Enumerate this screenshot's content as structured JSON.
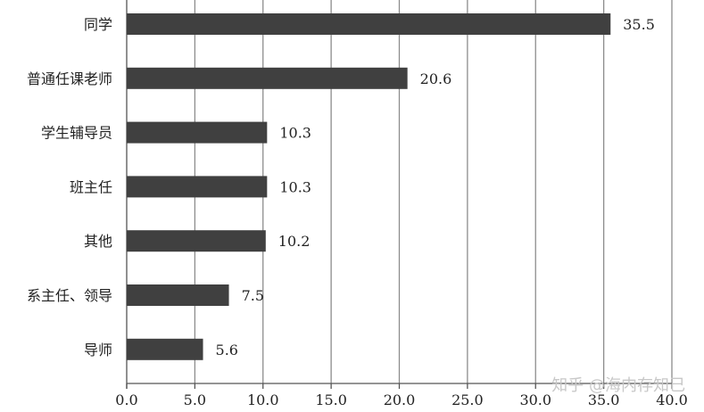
{
  "chart_data": {
    "type": "bar",
    "orientation": "horizontal",
    "categories": [
      "同学",
      "普通任课老师",
      "学生辅导员",
      "班主任",
      "其他",
      "系主任、领导",
      "导师"
    ],
    "values": [
      35.5,
      20.6,
      10.3,
      10.3,
      10.2,
      7.5,
      5.6
    ],
    "value_labels": [
      "35.5",
      "20.6",
      "10.3",
      "10.3",
      "10.2",
      "7.5",
      "5.6"
    ],
    "xlim": [
      0,
      40
    ],
    "ticks": [
      0,
      5,
      10,
      15,
      20,
      25,
      30,
      35,
      40
    ],
    "tick_labels": [
      "0.0",
      "5.0",
      "10.0",
      "15.0",
      "20.0",
      "25.0",
      "30.0",
      "35.0",
      "40.0"
    ],
    "grid": true,
    "bar_color": "#404040",
    "grid_color": "#8c8c8c"
  },
  "watermark": "知乎 @海内存知己"
}
